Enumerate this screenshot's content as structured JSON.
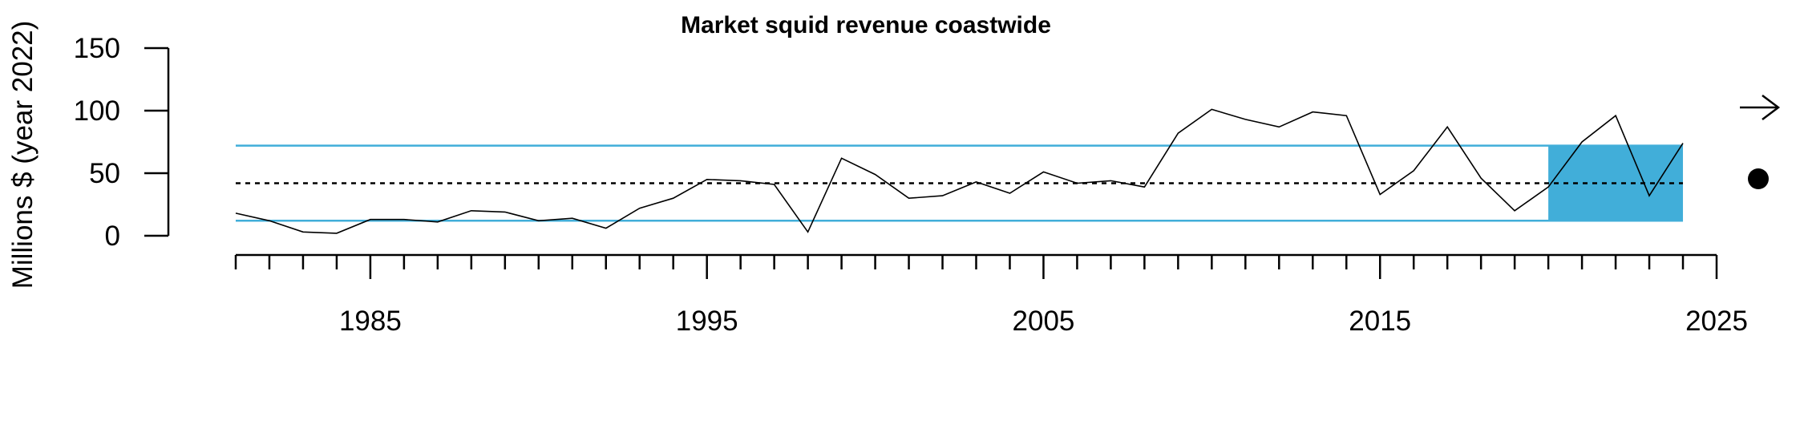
{
  "chart_data": {
    "type": "line",
    "title": "Market squid revenue coastwide",
    "ylabel": "Millions $ (year 2022)",
    "xlabel": "",
    "xlim": [
      1981,
      2025
    ],
    "ylim": [
      0,
      150
    ],
    "yticks": [
      "0",
      "50",
      "100",
      "150"
    ],
    "xticks": [
      "1985",
      "1995",
      "2005",
      "2015",
      "2025"
    ],
    "series": [
      {
        "values": [
          [
            1981,
            18
          ],
          [
            1982,
            12
          ],
          [
            1983,
            3
          ],
          [
            1984,
            2
          ],
          [
            1985,
            13
          ],
          [
            1986,
            13
          ],
          [
            1987,
            11
          ],
          [
            1988,
            20
          ],
          [
            1989,
            19
          ],
          [
            1990,
            12
          ],
          [
            1991,
            14
          ],
          [
            1992,
            6
          ],
          [
            1993,
            22
          ],
          [
            1994,
            30
          ],
          [
            1995,
            45
          ],
          [
            1996,
            44
          ],
          [
            1997,
            41
          ],
          [
            1998,
            3
          ],
          [
            1999,
            62
          ],
          [
            2000,
            49
          ],
          [
            2001,
            30
          ],
          [
            2002,
            32
          ],
          [
            2003,
            43
          ],
          [
            2004,
            34
          ],
          [
            2005,
            51
          ],
          [
            2006,
            42
          ],
          [
            2007,
            44
          ],
          [
            2008,
            39
          ],
          [
            2009,
            82
          ],
          [
            2010,
            101
          ],
          [
            2011,
            93
          ],
          [
            2012,
            87
          ],
          [
            2013,
            99
          ],
          [
            2014,
            96
          ],
          [
            2015,
            33
          ],
          [
            2016,
            52
          ],
          [
            2017,
            87
          ],
          [
            2018,
            46
          ],
          [
            2019,
            20
          ],
          [
            2020,
            39
          ],
          [
            2021,
            75
          ],
          [
            2022,
            96
          ],
          [
            2023,
            32
          ],
          [
            2024,
            74
          ]
        ]
      }
    ],
    "mean": 42,
    "upper_sd": 72,
    "lower_sd": 12,
    "recent_window": [
      2020,
      2024
    ],
    "trend_symbol": "arrow-right",
    "mean_symbol": "filled-circle",
    "colors": {
      "band": "#41AED9",
      "line": "#000000",
      "mean_line": "#000000"
    }
  }
}
